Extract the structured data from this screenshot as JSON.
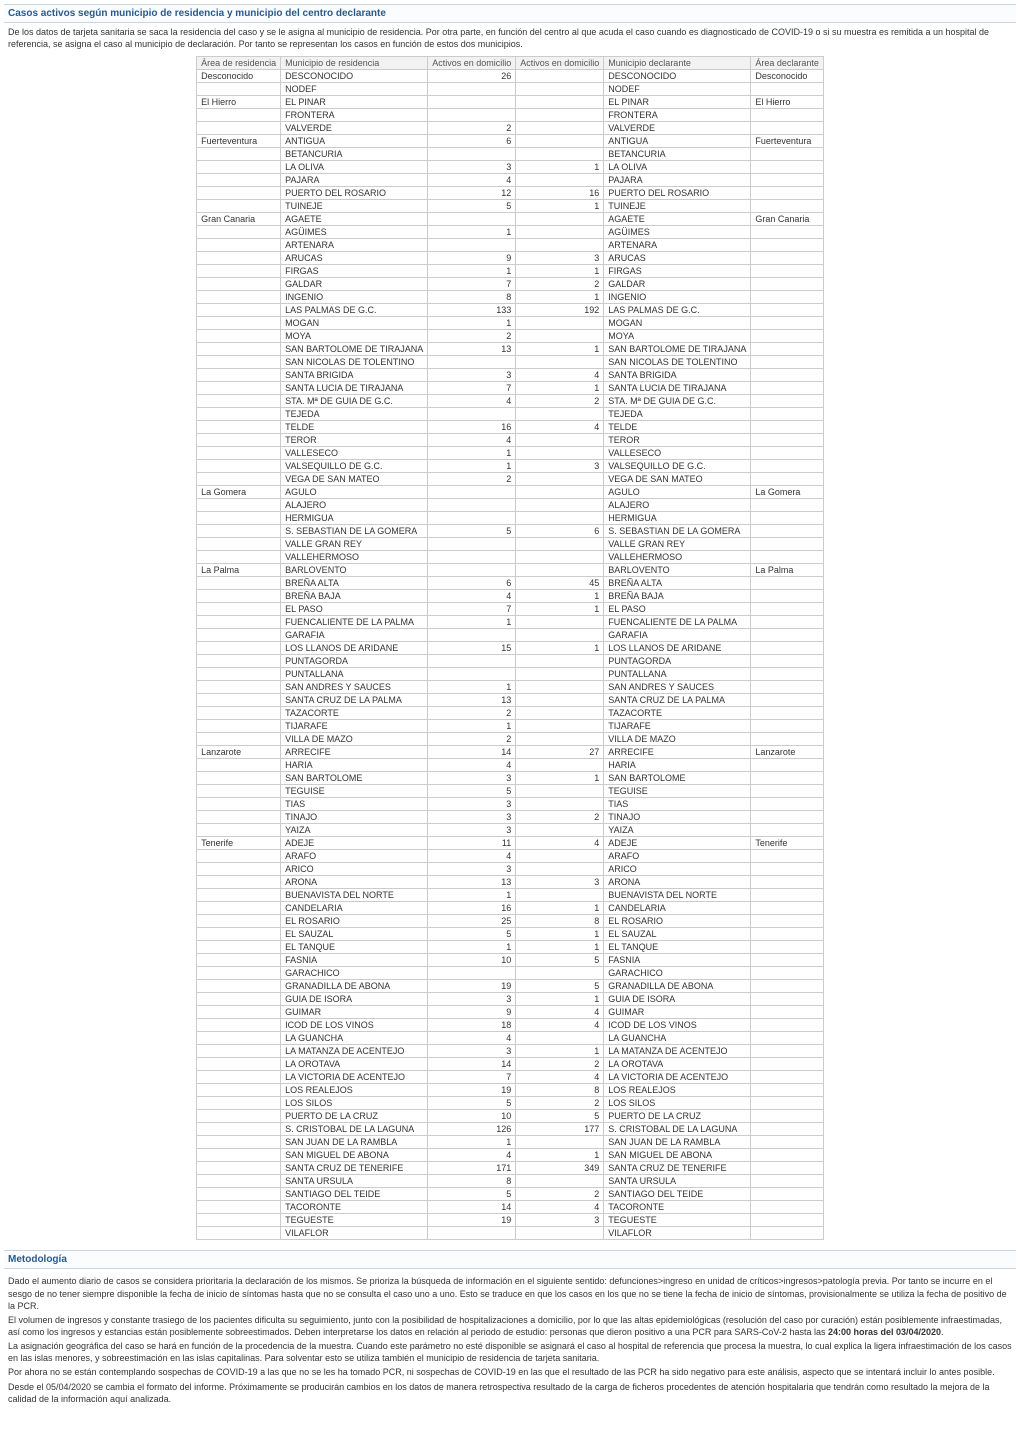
{
  "section1": {
    "title": "Casos activos según municipio de residencia y municipio del centro declarante",
    "desc": "De los datos de tarjeta sanitaria se saca la residencia del caso y se le asigna al municipio de residencia. Por otra parte, en función del centro al que acuda el caso cuando es diagnosticado de COVID-19 o si su muestra es remitida a un hospital de referencia, se asigna el caso al municipio de declaración. Por tanto se representan los casos en función de estos dos municipios.",
    "headers": [
      "Área de residencia",
      "Municipio de residencia",
      "Activos en domicilio",
      "Activos en domicilio",
      "Municipio declarante",
      "Área declarante"
    ],
    "rows": [
      {
        "area": "Desconocido",
        "muni_res": "DESCONOCIDO",
        "a1": "26",
        "a2": "",
        "muni_dec": "DESCONOCIDO",
        "area_dec": "Desconocido"
      },
      {
        "area": "",
        "muni_res": "NODEF",
        "a1": "",
        "a2": "",
        "muni_dec": "NODEF",
        "area_dec": ""
      },
      {
        "area": "El Hierro",
        "muni_res": "EL PINAR",
        "a1": "",
        "a2": "",
        "muni_dec": "EL PINAR",
        "area_dec": "El Hierro"
      },
      {
        "area": "",
        "muni_res": "FRONTERA",
        "a1": "",
        "a2": "",
        "muni_dec": "FRONTERA",
        "area_dec": ""
      },
      {
        "area": "",
        "muni_res": "VALVERDE",
        "a1": "2",
        "a2": "",
        "muni_dec": "VALVERDE",
        "area_dec": ""
      },
      {
        "area": "Fuerteventura",
        "muni_res": "ANTIGUA",
        "a1": "6",
        "a2": "",
        "muni_dec": "ANTIGUA",
        "area_dec": "Fuerteventura"
      },
      {
        "area": "",
        "muni_res": "BETANCURIA",
        "a1": "",
        "a2": "",
        "muni_dec": "BETANCURIA",
        "area_dec": ""
      },
      {
        "area": "",
        "muni_res": "LA OLIVA",
        "a1": "3",
        "a2": "1",
        "muni_dec": "LA OLIVA",
        "area_dec": ""
      },
      {
        "area": "",
        "muni_res": "PAJARA",
        "a1": "4",
        "a2": "",
        "muni_dec": "PAJARA",
        "area_dec": ""
      },
      {
        "area": "",
        "muni_res": "PUERTO DEL ROSARIO",
        "a1": "12",
        "a2": "16",
        "muni_dec": "PUERTO DEL ROSARIO",
        "area_dec": ""
      },
      {
        "area": "",
        "muni_res": "TUINEJE",
        "a1": "5",
        "a2": "1",
        "muni_dec": "TUINEJE",
        "area_dec": ""
      },
      {
        "area": "Gran Canaria",
        "muni_res": "AGAETE",
        "a1": "",
        "a2": "",
        "muni_dec": "AGAETE",
        "area_dec": "Gran Canaria"
      },
      {
        "area": "",
        "muni_res": "AGÜIMES",
        "a1": "1",
        "a2": "",
        "muni_dec": "AGÜIMES",
        "area_dec": ""
      },
      {
        "area": "",
        "muni_res": "ARTENARA",
        "a1": "",
        "a2": "",
        "muni_dec": "ARTENARA",
        "area_dec": ""
      },
      {
        "area": "",
        "muni_res": "ARUCAS",
        "a1": "9",
        "a2": "3",
        "muni_dec": "ARUCAS",
        "area_dec": ""
      },
      {
        "area": "",
        "muni_res": "FIRGAS",
        "a1": "1",
        "a2": "1",
        "muni_dec": "FIRGAS",
        "area_dec": ""
      },
      {
        "area": "",
        "muni_res": "GALDAR",
        "a1": "7",
        "a2": "2",
        "muni_dec": "GALDAR",
        "area_dec": ""
      },
      {
        "area": "",
        "muni_res": "INGENIO",
        "a1": "8",
        "a2": "1",
        "muni_dec": "INGENIO",
        "area_dec": ""
      },
      {
        "area": "",
        "muni_res": "LAS PALMAS DE G.C.",
        "a1": "133",
        "a2": "192",
        "muni_dec": "LAS PALMAS DE G.C.",
        "area_dec": ""
      },
      {
        "area": "",
        "muni_res": "MOGAN",
        "a1": "1",
        "a2": "",
        "muni_dec": "MOGAN",
        "area_dec": ""
      },
      {
        "area": "",
        "muni_res": "MOYA",
        "a1": "2",
        "a2": "",
        "muni_dec": "MOYA",
        "area_dec": ""
      },
      {
        "area": "",
        "muni_res": "SAN BARTOLOME DE TIRAJANA",
        "a1": "13",
        "a2": "1",
        "muni_dec": "SAN BARTOLOME DE TIRAJANA",
        "area_dec": ""
      },
      {
        "area": "",
        "muni_res": "SAN NICOLAS DE TOLENTINO",
        "a1": "",
        "a2": "",
        "muni_dec": "SAN NICOLAS DE TOLENTINO",
        "area_dec": ""
      },
      {
        "area": "",
        "muni_res": "SANTA BRIGIDA",
        "a1": "3",
        "a2": "4",
        "muni_dec": "SANTA BRIGIDA",
        "area_dec": ""
      },
      {
        "area": "",
        "muni_res": "SANTA LUCIA DE TIRAJANA",
        "a1": "7",
        "a2": "1",
        "muni_dec": "SANTA LUCIA DE TIRAJANA",
        "area_dec": ""
      },
      {
        "area": "",
        "muni_res": "STA. Mª DE GUIA DE G.C.",
        "a1": "4",
        "a2": "2",
        "muni_dec": "STA. Mª DE GUIA DE G.C.",
        "area_dec": ""
      },
      {
        "area": "",
        "muni_res": "TEJEDA",
        "a1": "",
        "a2": "",
        "muni_dec": "TEJEDA",
        "area_dec": ""
      },
      {
        "area": "",
        "muni_res": "TELDE",
        "a1": "16",
        "a2": "4",
        "muni_dec": "TELDE",
        "area_dec": ""
      },
      {
        "area": "",
        "muni_res": "TEROR",
        "a1": "4",
        "a2": "",
        "muni_dec": "TEROR",
        "area_dec": ""
      },
      {
        "area": "",
        "muni_res": "VALLESECO",
        "a1": "1",
        "a2": "",
        "muni_dec": "VALLESECO",
        "area_dec": ""
      },
      {
        "area": "",
        "muni_res": "VALSEQUILLO DE G.C.",
        "a1": "1",
        "a2": "3",
        "muni_dec": "VALSEQUILLO DE G.C.",
        "area_dec": ""
      },
      {
        "area": "",
        "muni_res": "VEGA DE SAN MATEO",
        "a1": "2",
        "a2": "",
        "muni_dec": "VEGA DE SAN MATEO",
        "area_dec": ""
      },
      {
        "area": "La Gomera",
        "muni_res": "AGULO",
        "a1": "",
        "a2": "",
        "muni_dec": "AGULO",
        "area_dec": "La Gomera"
      },
      {
        "area": "",
        "muni_res": "ALAJERO",
        "a1": "",
        "a2": "",
        "muni_dec": "ALAJERO",
        "area_dec": ""
      },
      {
        "area": "",
        "muni_res": "HERMIGUA",
        "a1": "",
        "a2": "",
        "muni_dec": "HERMIGUA",
        "area_dec": ""
      },
      {
        "area": "",
        "muni_res": "S. SEBASTIAN DE LA GOMERA",
        "a1": "5",
        "a2": "6",
        "muni_dec": "S. SEBASTIAN DE LA GOMERA",
        "area_dec": ""
      },
      {
        "area": "",
        "muni_res": "VALLE GRAN REY",
        "a1": "",
        "a2": "",
        "muni_dec": "VALLE GRAN REY",
        "area_dec": ""
      },
      {
        "area": "",
        "muni_res": "VALLEHERMOSO",
        "a1": "",
        "a2": "",
        "muni_dec": "VALLEHERMOSO",
        "area_dec": ""
      },
      {
        "area": "La Palma",
        "muni_res": "BARLOVENTO",
        "a1": "",
        "a2": "",
        "muni_dec": "BARLOVENTO",
        "area_dec": "La Palma"
      },
      {
        "area": "",
        "muni_res": "BREÑA ALTA",
        "a1": "6",
        "a2": "45",
        "muni_dec": "BREÑA ALTA",
        "area_dec": ""
      },
      {
        "area": "",
        "muni_res": "BREÑA BAJA",
        "a1": "4",
        "a2": "1",
        "muni_dec": "BREÑA BAJA",
        "area_dec": ""
      },
      {
        "area": "",
        "muni_res": "EL PASO",
        "a1": "7",
        "a2": "1",
        "muni_dec": "EL PASO",
        "area_dec": ""
      },
      {
        "area": "",
        "muni_res": "FUENCALIENTE DE LA PALMA",
        "a1": "1",
        "a2": "",
        "muni_dec": "FUENCALIENTE DE LA PALMA",
        "area_dec": ""
      },
      {
        "area": "",
        "muni_res": "GARAFIA",
        "a1": "",
        "a2": "",
        "muni_dec": "GARAFIA",
        "area_dec": ""
      },
      {
        "area": "",
        "muni_res": "LOS LLANOS DE ARIDANE",
        "a1": "15",
        "a2": "1",
        "muni_dec": "LOS LLANOS DE ARIDANE",
        "area_dec": ""
      },
      {
        "area": "",
        "muni_res": "PUNTAGORDA",
        "a1": "",
        "a2": "",
        "muni_dec": "PUNTAGORDA",
        "area_dec": ""
      },
      {
        "area": "",
        "muni_res": "PUNTALLANA",
        "a1": "",
        "a2": "",
        "muni_dec": "PUNTALLANA",
        "area_dec": ""
      },
      {
        "area": "",
        "muni_res": "SAN ANDRES Y SAUCES",
        "a1": "1",
        "a2": "",
        "muni_dec": "SAN ANDRES Y SAUCES",
        "area_dec": ""
      },
      {
        "area": "",
        "muni_res": "SANTA CRUZ DE LA PALMA",
        "a1": "13",
        "a2": "",
        "muni_dec": "SANTA CRUZ DE LA PALMA",
        "area_dec": ""
      },
      {
        "area": "",
        "muni_res": "TAZACORTE",
        "a1": "2",
        "a2": "",
        "muni_dec": "TAZACORTE",
        "area_dec": ""
      },
      {
        "area": "",
        "muni_res": "TIJARAFE",
        "a1": "1",
        "a2": "",
        "muni_dec": "TIJARAFE",
        "area_dec": ""
      },
      {
        "area": "",
        "muni_res": "VILLA DE MAZO",
        "a1": "2",
        "a2": "",
        "muni_dec": "VILLA DE MAZO",
        "area_dec": ""
      },
      {
        "area": "Lanzarote",
        "muni_res": "ARRECIFE",
        "a1": "14",
        "a2": "27",
        "muni_dec": "ARRECIFE",
        "area_dec": "Lanzarote"
      },
      {
        "area": "",
        "muni_res": "HARIA",
        "a1": "4",
        "a2": "",
        "muni_dec": "HARIA",
        "area_dec": ""
      },
      {
        "area": "",
        "muni_res": "SAN BARTOLOME",
        "a1": "3",
        "a2": "1",
        "muni_dec": "SAN BARTOLOME",
        "area_dec": ""
      },
      {
        "area": "",
        "muni_res": "TEGUISE",
        "a1": "5",
        "a2": "",
        "muni_dec": "TEGUISE",
        "area_dec": ""
      },
      {
        "area": "",
        "muni_res": "TIAS",
        "a1": "3",
        "a2": "",
        "muni_dec": "TIAS",
        "area_dec": ""
      },
      {
        "area": "",
        "muni_res": "TINAJO",
        "a1": "3",
        "a2": "2",
        "muni_dec": "TINAJO",
        "area_dec": ""
      },
      {
        "area": "",
        "muni_res": "YAIZA",
        "a1": "3",
        "a2": "",
        "muni_dec": "YAIZA",
        "area_dec": ""
      },
      {
        "area": "Tenerife",
        "muni_res": "ADEJE",
        "a1": "11",
        "a2": "4",
        "muni_dec": "ADEJE",
        "area_dec": "Tenerife"
      },
      {
        "area": "",
        "muni_res": "ARAFO",
        "a1": "4",
        "a2": "",
        "muni_dec": "ARAFO",
        "area_dec": ""
      },
      {
        "area": "",
        "muni_res": "ARICO",
        "a1": "3",
        "a2": "",
        "muni_dec": "ARICO",
        "area_dec": ""
      },
      {
        "area": "",
        "muni_res": "ARONA",
        "a1": "13",
        "a2": "3",
        "muni_dec": "ARONA",
        "area_dec": ""
      },
      {
        "area": "",
        "muni_res": "BUENAVISTA DEL NORTE",
        "a1": "1",
        "a2": "",
        "muni_dec": "BUENAVISTA DEL NORTE",
        "area_dec": ""
      },
      {
        "area": "",
        "muni_res": "CANDELARIA",
        "a1": "16",
        "a2": "1",
        "muni_dec": "CANDELARIA",
        "area_dec": ""
      },
      {
        "area": "",
        "muni_res": "EL ROSARIO",
        "a1": "25",
        "a2": "8",
        "muni_dec": "EL ROSARIO",
        "area_dec": ""
      },
      {
        "area": "",
        "muni_res": "EL SAUZAL",
        "a1": "5",
        "a2": "1",
        "muni_dec": "EL SAUZAL",
        "area_dec": ""
      },
      {
        "area": "",
        "muni_res": "EL TANQUE",
        "a1": "1",
        "a2": "1",
        "muni_dec": "EL TANQUE",
        "area_dec": ""
      },
      {
        "area": "",
        "muni_res": "FASNIA",
        "a1": "10",
        "a2": "5",
        "muni_dec": "FASNIA",
        "area_dec": ""
      },
      {
        "area": "",
        "muni_res": "GARACHICO",
        "a1": "",
        "a2": "",
        "muni_dec": "GARACHICO",
        "area_dec": ""
      },
      {
        "area": "",
        "muni_res": "GRANADILLA DE ABONA",
        "a1": "19",
        "a2": "5",
        "muni_dec": "GRANADILLA DE ABONA",
        "area_dec": ""
      },
      {
        "area": "",
        "muni_res": "GUIA DE ISORA",
        "a1": "3",
        "a2": "1",
        "muni_dec": "GUIA DE ISORA",
        "area_dec": ""
      },
      {
        "area": "",
        "muni_res": "GUIMAR",
        "a1": "9",
        "a2": "4",
        "muni_dec": "GUIMAR",
        "area_dec": ""
      },
      {
        "area": "",
        "muni_res": "ICOD DE LOS VINOS",
        "a1": "18",
        "a2": "4",
        "muni_dec": "ICOD DE LOS VINOS",
        "area_dec": ""
      },
      {
        "area": "",
        "muni_res": "LA GUANCHA",
        "a1": "4",
        "a2": "",
        "muni_dec": "LA GUANCHA",
        "area_dec": ""
      },
      {
        "area": "",
        "muni_res": "LA MATANZA DE ACENTEJO",
        "a1": "3",
        "a2": "1",
        "muni_dec": "LA MATANZA DE ACENTEJO",
        "area_dec": ""
      },
      {
        "area": "",
        "muni_res": "LA OROTAVA",
        "a1": "14",
        "a2": "2",
        "muni_dec": "LA OROTAVA",
        "area_dec": ""
      },
      {
        "area": "",
        "muni_res": "LA VICTORIA DE ACENTEJO",
        "a1": "7",
        "a2": "4",
        "muni_dec": "LA VICTORIA DE ACENTEJO",
        "area_dec": ""
      },
      {
        "area": "",
        "muni_res": "LOS REALEJOS",
        "a1": "19",
        "a2": "8",
        "muni_dec": "LOS REALEJOS",
        "area_dec": ""
      },
      {
        "area": "",
        "muni_res": "LOS SILOS",
        "a1": "5",
        "a2": "2",
        "muni_dec": "LOS SILOS",
        "area_dec": ""
      },
      {
        "area": "",
        "muni_res": "PUERTO DE LA CRUZ",
        "a1": "10",
        "a2": "5",
        "muni_dec": "PUERTO DE LA CRUZ",
        "area_dec": ""
      },
      {
        "area": "",
        "muni_res": "S. CRISTOBAL DE LA LAGUNA",
        "a1": "126",
        "a2": "177",
        "muni_dec": "S. CRISTOBAL DE LA LAGUNA",
        "area_dec": ""
      },
      {
        "area": "",
        "muni_res": "SAN JUAN DE LA RAMBLA",
        "a1": "1",
        "a2": "",
        "muni_dec": "SAN JUAN DE LA RAMBLA",
        "area_dec": ""
      },
      {
        "area": "",
        "muni_res": "SAN MIGUEL DE ABONA",
        "a1": "4",
        "a2": "1",
        "muni_dec": "SAN MIGUEL DE ABONA",
        "area_dec": ""
      },
      {
        "area": "",
        "muni_res": "SANTA CRUZ DE TENERIFE",
        "a1": "171",
        "a2": "349",
        "muni_dec": "SANTA CRUZ DE TENERIFE",
        "area_dec": ""
      },
      {
        "area": "",
        "muni_res": "SANTA URSULA",
        "a1": "8",
        "a2": "",
        "muni_dec": "SANTA URSULA",
        "area_dec": ""
      },
      {
        "area": "",
        "muni_res": "SANTIAGO DEL TEIDE",
        "a1": "5",
        "a2": "2",
        "muni_dec": "SANTIAGO DEL TEIDE",
        "area_dec": ""
      },
      {
        "area": "",
        "muni_res": "TACORONTE",
        "a1": "14",
        "a2": "4",
        "muni_dec": "TACORONTE",
        "area_dec": ""
      },
      {
        "area": "",
        "muni_res": "TEGUESTE",
        "a1": "19",
        "a2": "3",
        "muni_dec": "TEGUESTE",
        "area_dec": ""
      },
      {
        "area": "",
        "muni_res": "VILAFLOR",
        "a1": "",
        "a2": "",
        "muni_dec": "VILAFLOR",
        "area_dec": ""
      }
    ]
  },
  "methodology": {
    "title": "Metodología",
    "paragraphs": [
      "Dado el aumento diario de casos se considera prioritaria la declaración de los mismos. Se prioriza la búsqueda de información en el siguiente sentido: defunciones>ingreso en unidad de críticos>ingresos>patología previa. Por tanto se incurre en el sesgo de no tener siempre disponible la fecha de inicio de síntomas hasta que no se consulta el caso uno a uno. Esto se traduce en que los casos en los que no se tiene la fecha de inicio de síntomas, provisionalmente se utiliza la fecha de positivo de la PCR.",
      "El volumen de ingresos y constante trasiego de los pacientes dificulta su seguimiento, junto con la posibilidad de hospitalizaciones a domicilio, por lo que las altas epidemiológicas (resolución del caso por curación) están posiblemente infraestimadas, así como los ingresos y estancias están posiblemente sobreestimados. Deben interpretarse los datos en relación al periodo de estudio: personas que dieron positivo a una PCR para SARS-CoV-2 hasta las 24:00 horas del 03/04/2020.",
      "La asignación geográfica del caso se hará en función de la procedencia de la muestra. Cuando este parámetro no esté disponible se asignará el caso al hospital de referencia que procesa la muestra, lo cual explica la ligera infraestimación de los casos en las islas menores, y sobreestimación en las islas capitalinas. Para solventar esto se utiliza también el municipio de residencia de tarjeta sanitaria.",
      "Por ahora no se están contemplando sospechas de COVID-19 a las que no se les ha tomado PCR, ni sospechas de COVID-19 en las que el resultado de las PCR ha sido negativo para este análisis, aspecto que se intentará incluir lo antes posible.",
      "Desde el 05/04/2020 se cambia el formato del informe. Próximamente se producirán cambios en los datos de manera retrospectiva resultado de la carga de ficheros procedentes de atención hospitalaria que tendrán como resultado la mejora de la calidad de la información aquí analizada."
    ]
  }
}
